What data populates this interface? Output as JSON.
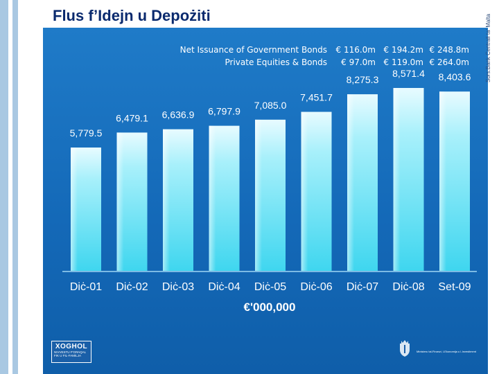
{
  "title": "Flus f’Idejn u Depożiti",
  "source": "Sors:Bank Ċentrali ta' Malta",
  "notes": [
    {
      "label": "Net Issuance of Government Bonds",
      "values": [
        "€ 116.0m",
        "€ 194.2m",
        "€ 248.8m"
      ]
    },
    {
      "label": "Private Equities & Bonds",
      "values": [
        "€ 97.0m",
        "€ 119.0m",
        "€ 264.0m"
      ]
    }
  ],
  "logo": {
    "title": "XOGHOL",
    "sub1": "NIVVESTU F'GĦAQAL",
    "sub2": "FIK U FIL-FAMILJA"
  },
  "ministry": "Ministeru tal-Finanzi, l-Ekonomija u l-Investiment",
  "colors": {
    "panel": "#1469b8",
    "bar_top": "#e8fbff",
    "bar_bottom": "#3fd6ef",
    "text": "#ffffff"
  },
  "chart_data": {
    "type": "bar",
    "categories": [
      "Diċ-01",
      "Diċ-02",
      "Diċ-03",
      "Diċ-04",
      "Diċ-05",
      "Diċ-06",
      "Diċ-07",
      "Diċ-08",
      "Set-09"
    ],
    "values": [
      5779.5,
      6479.1,
      6636.9,
      6797.9,
      7085.0,
      7451.7,
      8275.3,
      8571.4,
      8403.6
    ],
    "value_labels": [
      "5,779.5",
      "6,479.1",
      "6,636.9",
      "6,797.9",
      "7,085.0",
      "7,451.7",
      "8,275.3",
      "8,571.4",
      "8,403.6"
    ],
    "xlabel": "€'000,000",
    "ylabel": "",
    "ylim": [
      0,
      10000
    ],
    "grid": false,
    "legend": "none"
  }
}
